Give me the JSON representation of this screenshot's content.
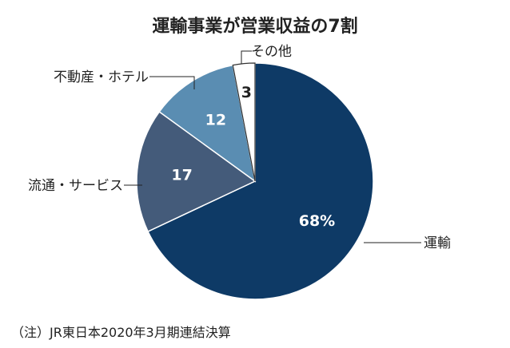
{
  "chart_data": {
    "type": "pie",
    "title": "運輸事業が営業収益の7割",
    "note": "（注）JR東日本2020年3月期連結決算",
    "unit": "%",
    "slices": [
      {
        "name": "運輸",
        "value": 68,
        "value_label": "68%",
        "color": "#0e3a66",
        "label_color": "#ffffff"
      },
      {
        "name": "流通・サービス",
        "value": 17,
        "value_label": "17",
        "color": "#445b7a",
        "label_color": "#ffffff"
      },
      {
        "name": "不動産・ホテル",
        "value": 12,
        "value_label": "12",
        "color": "#5a8db2",
        "label_color": "#ffffff"
      },
      {
        "name": "その他",
        "value": 3,
        "value_label": "3",
        "color": "#ffffff",
        "label_color": "#222222"
      }
    ],
    "start": "12 o'clock",
    "direction": "clockwise",
    "slice_edge_color": "#ffffff"
  }
}
